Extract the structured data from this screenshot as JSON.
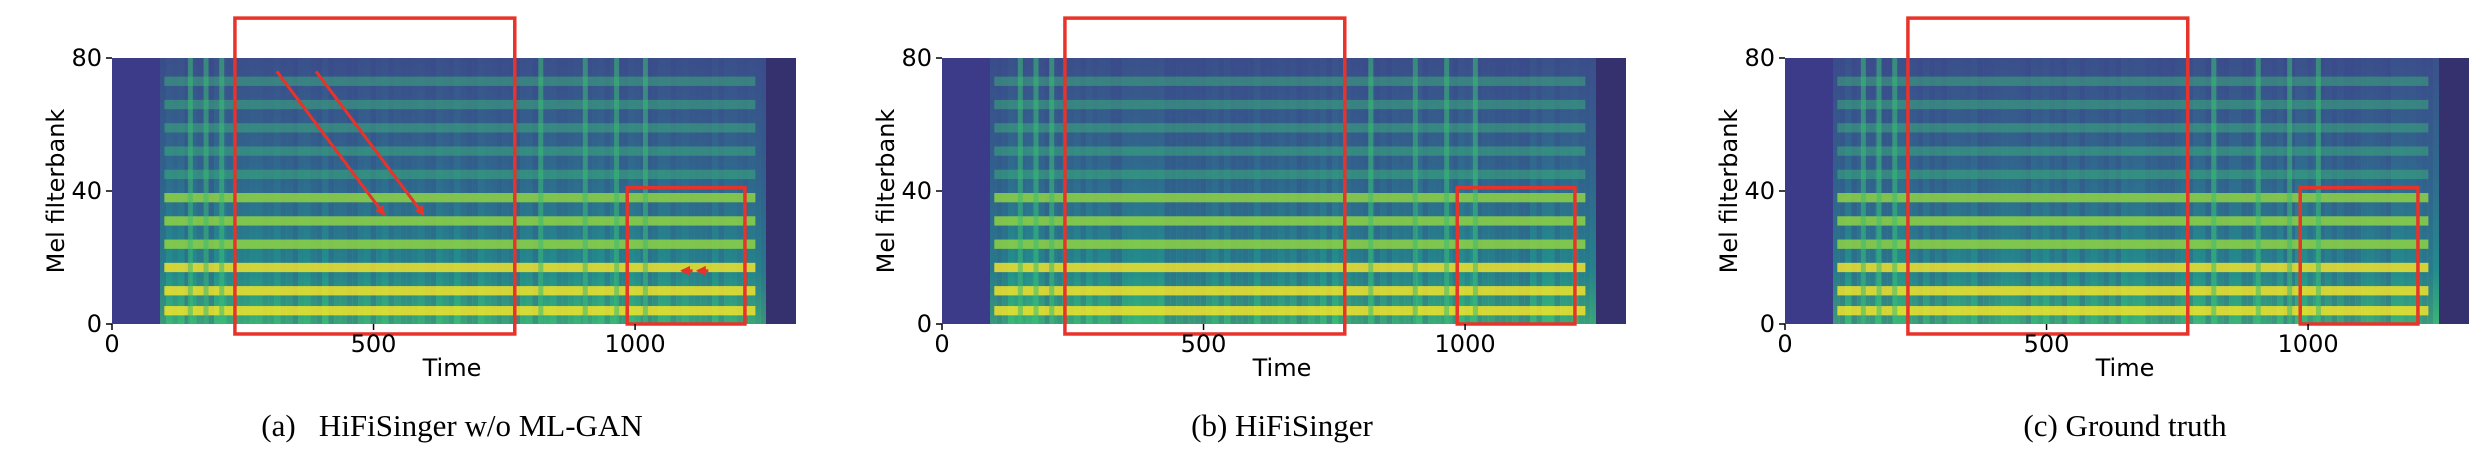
{
  "chart_data": [
    {
      "type": "heatmap",
      "caption": "(a)   HiFiSinger w/o ML-GAN",
      "xlabel": "Time",
      "ylabel": "Mel filterbank",
      "xlim": [
        0,
        1300
      ],
      "ylim": [
        0,
        80
      ],
      "x_ticks": [
        0,
        500,
        1000
      ],
      "y_ticks": [
        0,
        40,
        80
      ],
      "highlight_boxes": [
        {
          "x": [
            235,
            770
          ],
          "y": [
            -3,
            92
          ]
        },
        {
          "x": [
            985,
            1210
          ],
          "y": [
            0,
            41
          ]
        }
      ],
      "arrows": [
        {
          "from": [
            315,
            76
          ],
          "to": [
            520,
            33
          ]
        },
        {
          "from": [
            390,
            76
          ],
          "to": [
            595,
            33
          ]
        },
        {
          "from": [
            1110,
            16
          ],
          "to": [
            1090,
            16
          ]
        },
        {
          "from": [
            1140,
            16
          ],
          "to": [
            1120,
            16
          ]
        }
      ]
    },
    {
      "type": "heatmap",
      "caption": "(b) HiFiSinger",
      "xlabel": "Time",
      "ylabel": "Mel filterbank",
      "xlim": [
        0,
        1300
      ],
      "ylim": [
        0,
        80
      ],
      "x_ticks": [
        0,
        500,
        1000
      ],
      "y_ticks": [
        0,
        40,
        80
      ],
      "highlight_boxes": [
        {
          "x": [
            235,
            770
          ],
          "y": [
            -3,
            92
          ]
        },
        {
          "x": [
            985,
            1210
          ],
          "y": [
            0,
            41
          ]
        }
      ],
      "arrows": []
    },
    {
      "type": "heatmap",
      "caption": "(c) Ground truth",
      "xlabel": "Time",
      "ylabel": "Mel filterbank",
      "xlim": [
        0,
        1300
      ],
      "ylim": [
        0,
        80
      ],
      "x_ticks": [
        0,
        500,
        1000
      ],
      "y_ticks": [
        0,
        40,
        80
      ],
      "highlight_boxes": [
        {
          "x": [
            235,
            770
          ],
          "y": [
            -3,
            92
          ]
        },
        {
          "x": [
            985,
            1210
          ],
          "y": [
            0,
            41
          ]
        }
      ],
      "arrows": []
    }
  ],
  "colors": {
    "colormap": [
      "#2e0b4b",
      "#3b3b8a",
      "#2e6e8e",
      "#21918c",
      "#3bbb75",
      "#95d840",
      "#fde725"
    ],
    "highlight": "#e8332a"
  }
}
